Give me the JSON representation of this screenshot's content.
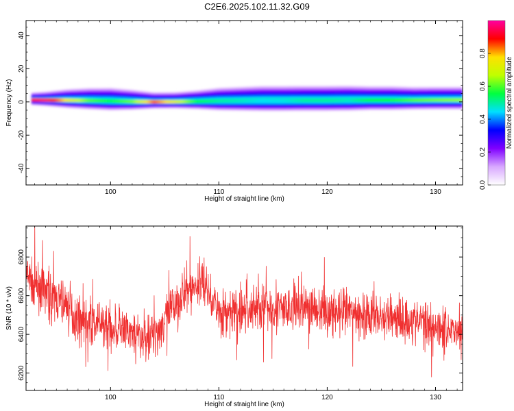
{
  "figure": {
    "title": "C2E6.2025.102.11.32.G09"
  },
  "chart_data": [
    {
      "type": "heatmap",
      "xlabel": "Height of straight line (km)",
      "ylabel": "Frequency (Hz)",
      "xlim": [
        92.2,
        132.5
      ],
      "ylim": [
        -50,
        49
      ],
      "xticks": [
        100,
        110,
        120,
        130
      ],
      "yticks": [
        -40,
        -20,
        0,
        20,
        40
      ],
      "colorbar": {
        "label": "Normalized spectral amplitude",
        "range": [
          0,
          1
        ],
        "ticks": [
          0,
          0.2,
          0.4,
          0.6,
          0.8
        ],
        "tick_labels": [
          "0.0",
          "0.2",
          "0.4",
          "0.6",
          "0.8"
        ],
        "colormap": [
          "#ffffff",
          "#d8a8ff",
          "#8000ff",
          "#0000ff",
          "#00e0ff",
          "#00ff40",
          "#c0ff00",
          "#ffe000",
          "#ff0000",
          "#ff00a0"
        ]
      },
      "ridge": {
        "x": [
          92.7,
          94,
          96,
          98,
          100,
          102,
          104,
          106,
          108,
          110,
          112,
          114,
          116,
          118,
          120,
          122,
          124,
          126,
          128,
          130,
          132.5
        ],
        "center_hz": [
          1.2,
          1.1,
          1.0,
          0.8,
          0.5,
          0.2,
          0.0,
          0.1,
          0.3,
          0.5,
          0.6,
          0.7,
          0.7,
          0.8,
          0.8,
          0.9,
          1.0,
          1.0,
          1.0,
          1.1,
          1.1
        ],
        "halfwidth_hz": [
          2.0,
          2.3,
          3.0,
          3.4,
          3.6,
          3.2,
          2.6,
          2.6,
          3.0,
          3.6,
          3.8,
          4.0,
          4.0,
          4.0,
          4.0,
          4.0,
          3.8,
          3.8,
          3.6,
          3.6,
          3.6
        ],
        "peak_amplitude": [
          0.95,
          0.96,
          0.75,
          0.6,
          0.55,
          0.62,
          0.85,
          0.72,
          0.55,
          0.5,
          0.48,
          0.45,
          0.46,
          0.5,
          0.5,
          0.48,
          0.55,
          0.56,
          0.6,
          0.62,
          0.64
        ]
      }
    },
    {
      "type": "line",
      "xlabel": "Height of straight line (km)",
      "ylabel": "SNR (10 * v/v)",
      "xlim": [
        92.2,
        132.5
      ],
      "ylim": [
        6110,
        6960
      ],
      "xticks": [
        100,
        110,
        120,
        130
      ],
      "yticks": [
        6200,
        6400,
        6600,
        6800
      ],
      "color": "#f03030",
      "series": [
        {
          "x": [
            92.2,
            93,
            94,
            95,
            96,
            97,
            98,
            99,
            100,
            101,
            102,
            103,
            104,
            105,
            106,
            107,
            108,
            108.5,
            109,
            110,
            111,
            112,
            113,
            114,
            115,
            116,
            117,
            118,
            119,
            120,
            121,
            122,
            123,
            124,
            125,
            126,
            127,
            128,
            129,
            130,
            131,
            132,
            132.5
          ],
          "values": [
            6700,
            6650,
            6620,
            6580,
            6540,
            6480,
            6470,
            6450,
            6440,
            6420,
            6400,
            6380,
            6400,
            6470,
            6560,
            6620,
            6650,
            6680,
            6620,
            6520,
            6500,
            6520,
            6530,
            6550,
            6540,
            6520,
            6540,
            6550,
            6530,
            6520,
            6500,
            6510,
            6500,
            6500,
            6480,
            6490,
            6470,
            6470,
            6460,
            6450,
            6430,
            6420,
            6420
          ],
          "noise_amplitude": 110
        }
      ]
    }
  ]
}
